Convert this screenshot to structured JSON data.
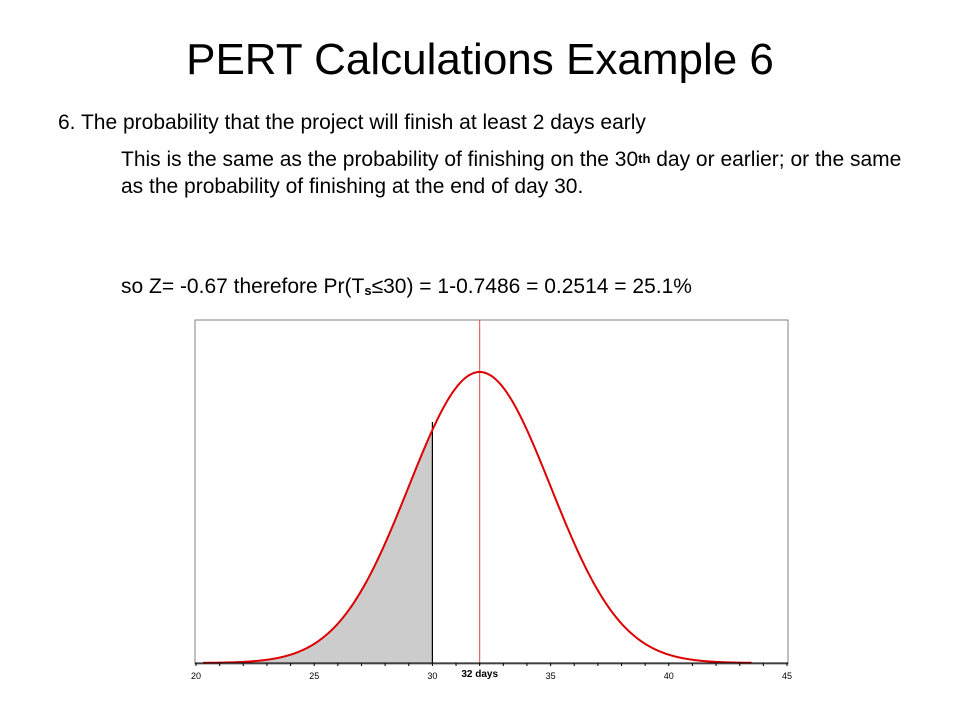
{
  "slide": {
    "title": "PERT Calculations Example 6",
    "item_number": "6.",
    "item_heading": "The probability that the project will finish at least 2 days early",
    "body_part1": "This is the same as the probability of finishing on the 30",
    "body_superscript": "th",
    "body_part2": " day or earlier; or the same as the probability of finishing at the end of day 30.",
    "calc_prefix": "so Z= -0.67 therefore Pr(T",
    "calc_subscript": "s",
    "calc_suffix": "≤30) = 1-0.7486 = 0.2514 = 25.1%"
  },
  "chart_data": {
    "type": "area",
    "distribution": "normal",
    "mean": 32,
    "std_dev": 3,
    "shaded_region": {
      "from": 20,
      "to": 30
    },
    "cutoff_x": 30,
    "mean_label": "32 days",
    "xlim": [
      20,
      45
    ],
    "x_ticks": [
      "20",
      "25",
      "30",
      "35",
      "40",
      "45"
    ],
    "x_tick_values": [
      20,
      25,
      30,
      35,
      40,
      45
    ],
    "colors": {
      "curve": "#dd0000",
      "mean_line": "#ee4444",
      "shade": "#cccccc",
      "cutoff_line": "#000000",
      "frame": "#808080"
    },
    "grid": false
  }
}
